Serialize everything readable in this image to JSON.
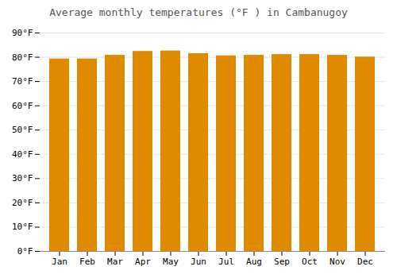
{
  "chart_data": {
    "type": "bar",
    "title": "Average monthly temperatures (°F ) in Cambanugoy",
    "categories": [
      "Jan",
      "Feb",
      "Mar",
      "Apr",
      "May",
      "Jun",
      "Jul",
      "Aug",
      "Sep",
      "Oct",
      "Nov",
      "Dec"
    ],
    "values": [
      79.3,
      79.3,
      80.8,
      82.4,
      82.6,
      81.5,
      80.6,
      80.8,
      81.1,
      81.1,
      80.8,
      80.1
    ],
    "color": "#E08A00",
    "ylim": [
      0,
      90
    ],
    "yticks": [
      {
        "value": 0,
        "label": "0°F"
      },
      {
        "value": 10,
        "label": "10°F"
      },
      {
        "value": 20,
        "label": "20°F"
      },
      {
        "value": 30,
        "label": "30°F"
      },
      {
        "value": 40,
        "label": "40°F"
      },
      {
        "value": 50,
        "label": "50°F"
      },
      {
        "value": 60,
        "label": "60°F"
      },
      {
        "value": 70,
        "label": "70°F"
      },
      {
        "value": 80,
        "label": "80°F"
      },
      {
        "value": 90,
        "label": "90°F"
      }
    ],
    "grid": true
  }
}
